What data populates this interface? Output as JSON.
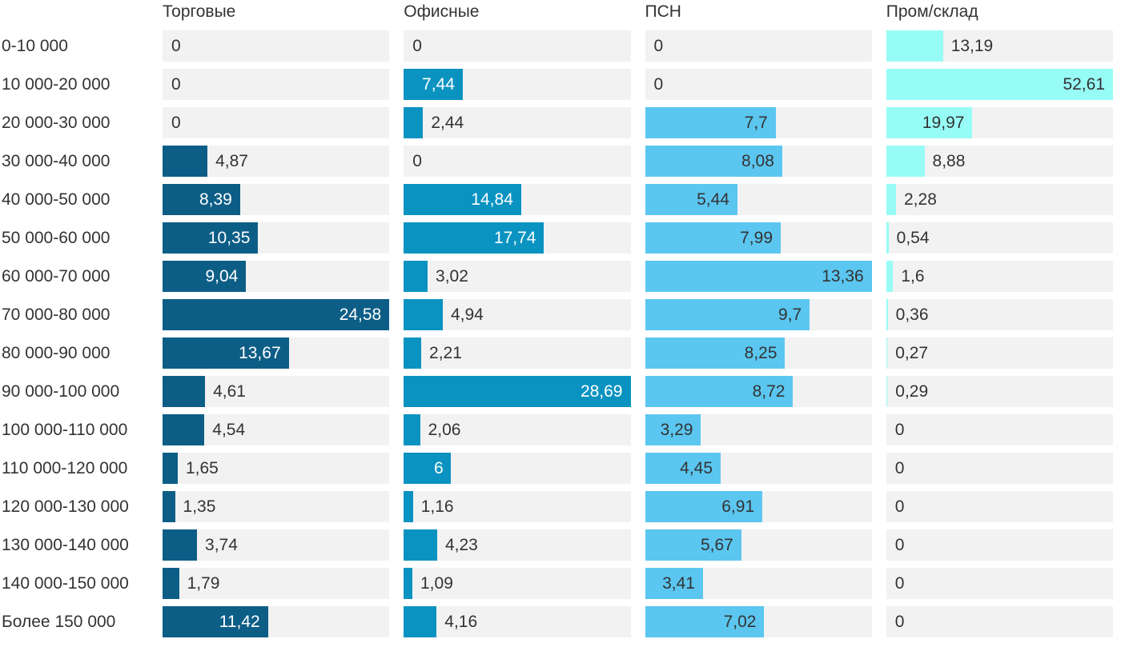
{
  "page": {
    "background": "#ffffff"
  },
  "chart_data": {
    "type": "bar",
    "orientation": "horizontal",
    "title": "",
    "xlabel": "",
    "ylabel": "",
    "categories": [
      "0-10 000",
      "10 000-20 000",
      "20 000-30 000",
      "30 000-40 000",
      "40 000-50 000",
      "50 000-60 000",
      "60 000-70 000",
      "70 000-80 000",
      "80 000-90 000",
      "90 000-100 000",
      "100 000-110 000",
      "110 000-120 000",
      "120 000-130 000",
      "130 000-140 000",
      "140 000-150 000",
      "Более 150 000"
    ],
    "series": [
      {
        "name": "Торговые",
        "color": "#0d5e86",
        "value_text_color_inside": "#ffffff",
        "values": [
          0,
          0,
          0,
          4.87,
          8.39,
          10.35,
          9.04,
          24.58,
          13.67,
          4.61,
          4.54,
          1.65,
          1.35,
          3.74,
          1.79,
          11.42
        ],
        "labels": [
          "0",
          "0",
          "0",
          "4,87",
          "8,39",
          "10,35",
          "9,04",
          "24,58",
          "13,67",
          "4,61",
          "4,54",
          "1,65",
          "1,35",
          "3,74",
          "1,79",
          "11,42"
        ]
      },
      {
        "name": "Офисные",
        "color": "#0a93c1",
        "value_text_color_inside": "#ffffff",
        "values": [
          0,
          7.44,
          2.44,
          0,
          14.84,
          17.74,
          3.02,
          4.94,
          2.21,
          28.69,
          2.06,
          6,
          1.16,
          4.23,
          1.09,
          4.16
        ],
        "labels": [
          "0",
          "7,44",
          "2,44",
          "0",
          "14,84",
          "17,74",
          "3,02",
          "4,94",
          "2,21",
          "28,69",
          "2,06",
          "6",
          "1,16",
          "4,23",
          "1,09",
          "4,16"
        ]
      },
      {
        "name": "ПСН",
        "color": "#5bc6f0",
        "value_text_color_inside": "#333333",
        "values": [
          0,
          0,
          7.7,
          8.08,
          5.44,
          7.99,
          13.36,
          9.7,
          8.25,
          8.72,
          3.29,
          4.45,
          6.91,
          5.67,
          3.41,
          7.02
        ],
        "labels": [
          "0",
          "0",
          "7,7",
          "8,08",
          "5,44",
          "7,99",
          "13,36",
          "9,7",
          "8,25",
          "8,72",
          "3,29",
          "4,45",
          "6,91",
          "5,67",
          "3,41",
          "7,02"
        ]
      },
      {
        "name": "Пром/склад",
        "color": "#97fbf6",
        "value_text_color_inside": "#333333",
        "values": [
          13.19,
          52.61,
          19.97,
          8.88,
          2.28,
          0.54,
          1.6,
          0.36,
          0.27,
          0.29,
          0,
          0,
          0,
          0,
          0,
          0
        ],
        "labels": [
          "13,19",
          "52,61",
          "19,97",
          "8,88",
          "2,28",
          "0,54",
          "1,6",
          "0,36",
          "0,27",
          "0,29",
          "0",
          "0",
          "0",
          "0",
          "0",
          "0"
        ]
      }
    ],
    "layout": {
      "legend_position": "column-headers-top",
      "grid": false,
      "track_color": "#f2f2f2",
      "text_color": "#333333",
      "bars_scaled_to_each_series_max": true,
      "decimal_separator": ","
    }
  }
}
